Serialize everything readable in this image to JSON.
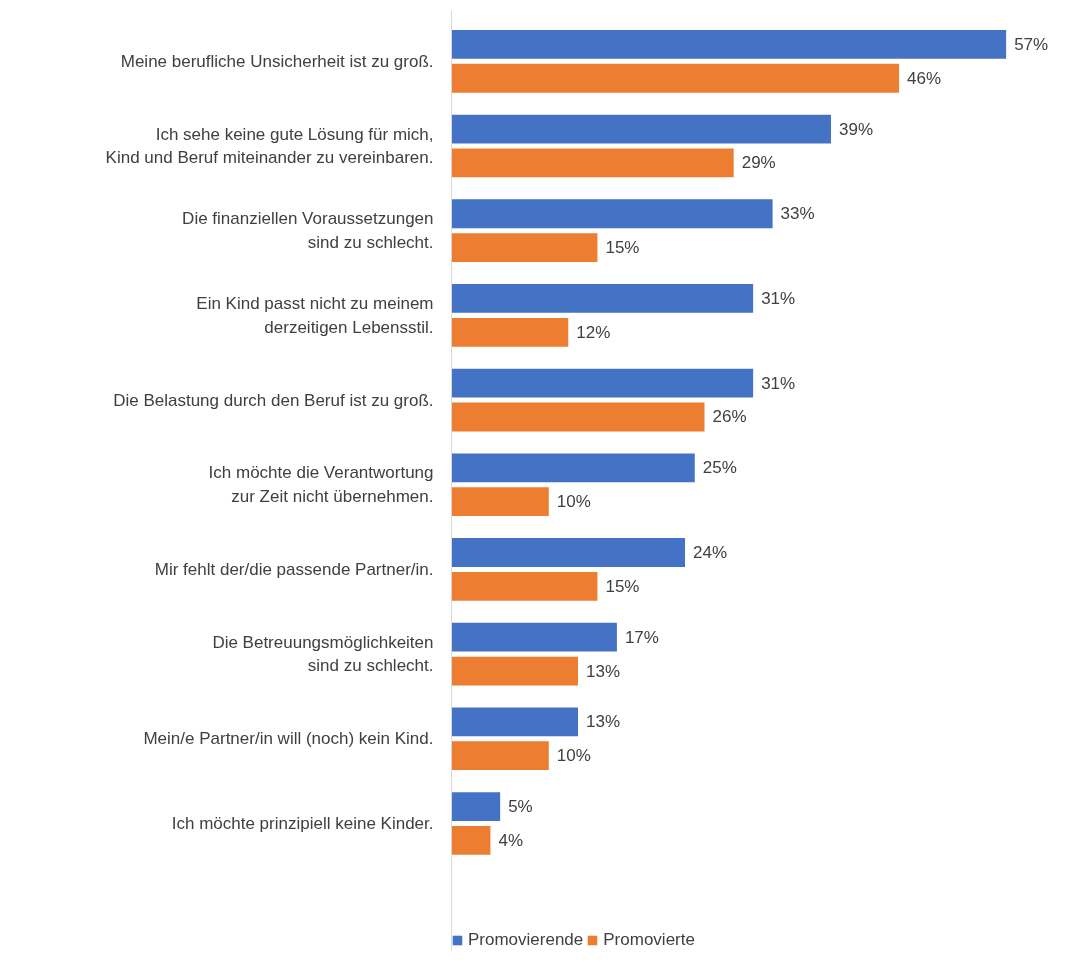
{
  "chart_data": {
    "type": "bar",
    "orientation": "horizontal",
    "categories": [
      "Meine berufliche Unsicherheit ist zu groß.",
      "Ich sehe keine gute Lösung für mich,\nKind und Beruf miteinander zu vereinbaren.",
      "Die finanziellen Voraussetzungen\nsind zu schlecht.",
      "Ein Kind passt nicht zu meinem\nderzeitigen Lebensstil.",
      "Die Belastung durch den Beruf ist zu groß.",
      "Ich möchte die Verantwortung\nzur Zeit nicht übernehmen.",
      "Mir fehlt der/die passende Partner/in.",
      "Die Betreuungsmöglichkeiten\nsind zu schlecht.",
      "Mein/e Partner/in will (noch) kein Kind.",
      "Ich möchte prinzipiell keine Kinder."
    ],
    "series": [
      {
        "name": "Promovierende",
        "color": "#4472c4",
        "values": [
          57,
          39,
          33,
          31,
          31,
          25,
          24,
          17,
          13,
          5
        ],
        "value_labels": [
          "57%",
          "39%",
          "33%",
          "31%",
          "31%",
          "25%",
          "24%",
          "17%",
          "13%",
          "5%"
        ]
      },
      {
        "name": "Promovierte",
        "color": "#ed7d31",
        "values": [
          46,
          29,
          15,
          12,
          26,
          10,
          15,
          13,
          10,
          4
        ],
        "value_labels": [
          "46%",
          "29%",
          "15%",
          "12%",
          "26%",
          "10%",
          "15%",
          "13%",
          "10%",
          "4%"
        ]
      }
    ],
    "legend": "bottom"
  }
}
